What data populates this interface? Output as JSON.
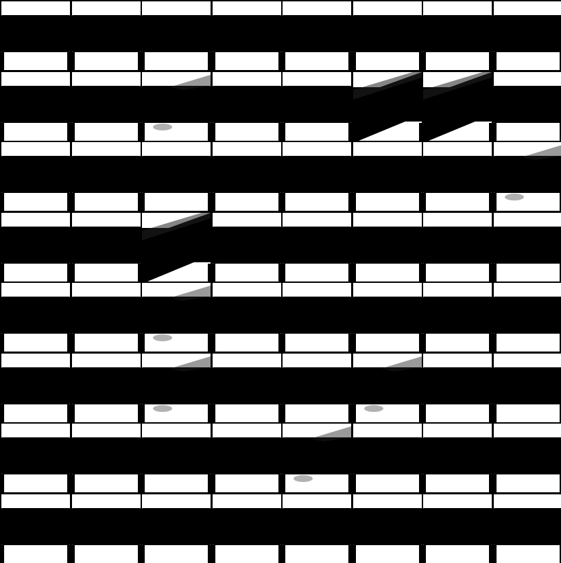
{
  "image": {
    "kind": "sample-grid",
    "rows": 8,
    "columns": 8,
    "colors": {
      "background": "#000000",
      "light": "#ffffff",
      "dark": "#000000",
      "smudge": "#202020"
    },
    "tiles": [
      [
        "flat",
        "flat",
        "flat",
        "flat",
        "flat",
        "flat",
        "flat",
        "flat"
      ],
      [
        "flat",
        "flat",
        "faint",
        "flat",
        "flat",
        "diagonal",
        "diagonal",
        "flat"
      ],
      [
        "flat",
        "flat",
        "flat",
        "flat",
        "flat",
        "flat",
        "flat",
        "faint"
      ],
      [
        "flat",
        "flat",
        "diagonal",
        "flat",
        "flat",
        "flat",
        "flat",
        "flat"
      ],
      [
        "flat",
        "flat",
        "faint",
        "flat",
        "flat",
        "flat",
        "flat",
        "flat"
      ],
      [
        "flat",
        "flat",
        "faint",
        "flat",
        "flat",
        "faint",
        "flat",
        "flat"
      ],
      [
        "flat",
        "flat",
        "flat",
        "flat",
        "faint",
        "flat",
        "flat",
        "flat"
      ],
      [
        "flat",
        "flat",
        "flat",
        "flat",
        "flat",
        "flat",
        "flat",
        "flat"
      ]
    ]
  }
}
